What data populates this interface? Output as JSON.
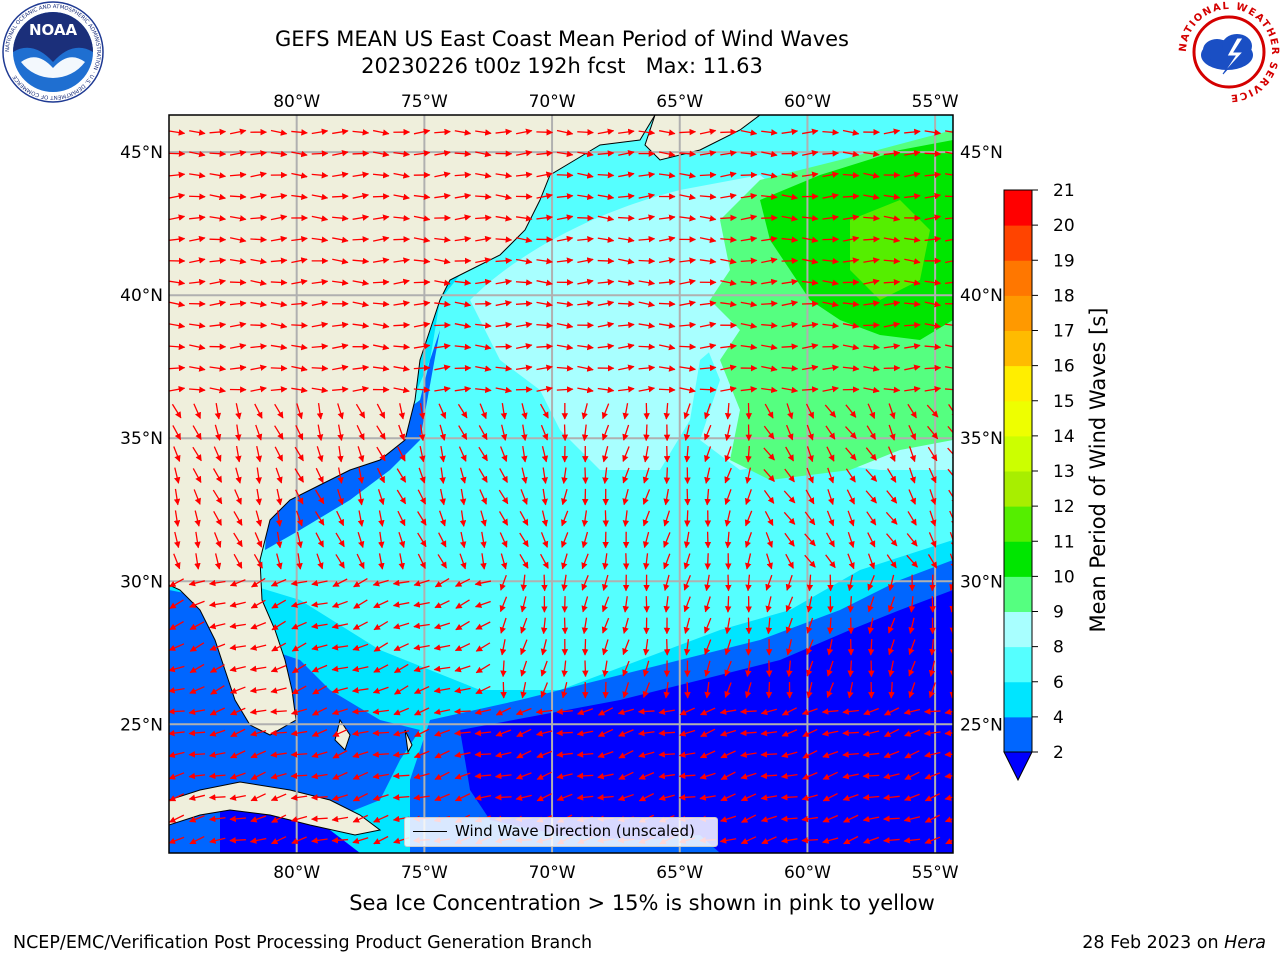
{
  "title": {
    "line1": "GEFS MEAN US East Coast Mean Period of Wind Waves",
    "line2": "20230226 t00z 192h fcst   Max: 11.63"
  },
  "map": {
    "lon_range": [
      -85,
      -54.3
    ],
    "lat_range": [
      20.5,
      46.3
    ],
    "lon_ticks": [
      -80,
      -75,
      -70,
      -65,
      -60,
      -55
    ],
    "lon_tick_labels": [
      "80°W",
      "75°W",
      "70°W",
      "65°W",
      "60°W",
      "55°W"
    ],
    "lat_ticks": [
      25,
      30,
      35,
      40,
      45
    ],
    "lat_tick_labels": [
      "25°N",
      "30°N",
      "35°N",
      "40°N",
      "45°N"
    ],
    "land_color": "#efefdc",
    "grid_color": "#b0b0b0",
    "arrow_color": "#ff0000"
  },
  "colorbar": {
    "label": "Mean Period of Wind Waves [s]",
    "levels": [
      2,
      4,
      6,
      8,
      9,
      10,
      11,
      12,
      13,
      14,
      15,
      16,
      17,
      18,
      19,
      20,
      21
    ],
    "tick_labels": [
      "2",
      "4",
      "6",
      "8",
      "9",
      "10",
      "11",
      "12",
      "13",
      "14",
      "15",
      "16",
      "17",
      "18",
      "19",
      "20",
      "21"
    ],
    "colors": [
      "#0066ff",
      "#00e5ff",
      "#55ffff",
      "#a8ffff",
      "#55ff80",
      "#00e600",
      "#55ee00",
      "#a8ee00",
      "#ccff00",
      "#eeff00",
      "#ffee00",
      "#ffbb00",
      "#ff9900",
      "#ff7700",
      "#ff4400",
      "#ff0000"
    ],
    "under_color": "#0000ff",
    "extend": "min"
  },
  "legend": {
    "label": "Wind Wave Direction (unscaled)"
  },
  "sea_ice_note": "Sea Ice Concentration > 15% is shown in pink to yellow",
  "footer": {
    "left": "NCEP/EMC/Verification Post Processing Product Generation Branch",
    "right_date": "28 Feb 2023 on ",
    "right_host": "Hera"
  },
  "logos": {
    "left": {
      "text": "NOAA",
      "ring_text": "NATIONAL OCEANIC AND ATMOSPHERIC ADMINISTRATION · U.S. DEPARTMENT OF COMMERCE"
    },
    "right": {
      "ring_text": "NATIONAL WEATHER SERVICE"
    }
  }
}
